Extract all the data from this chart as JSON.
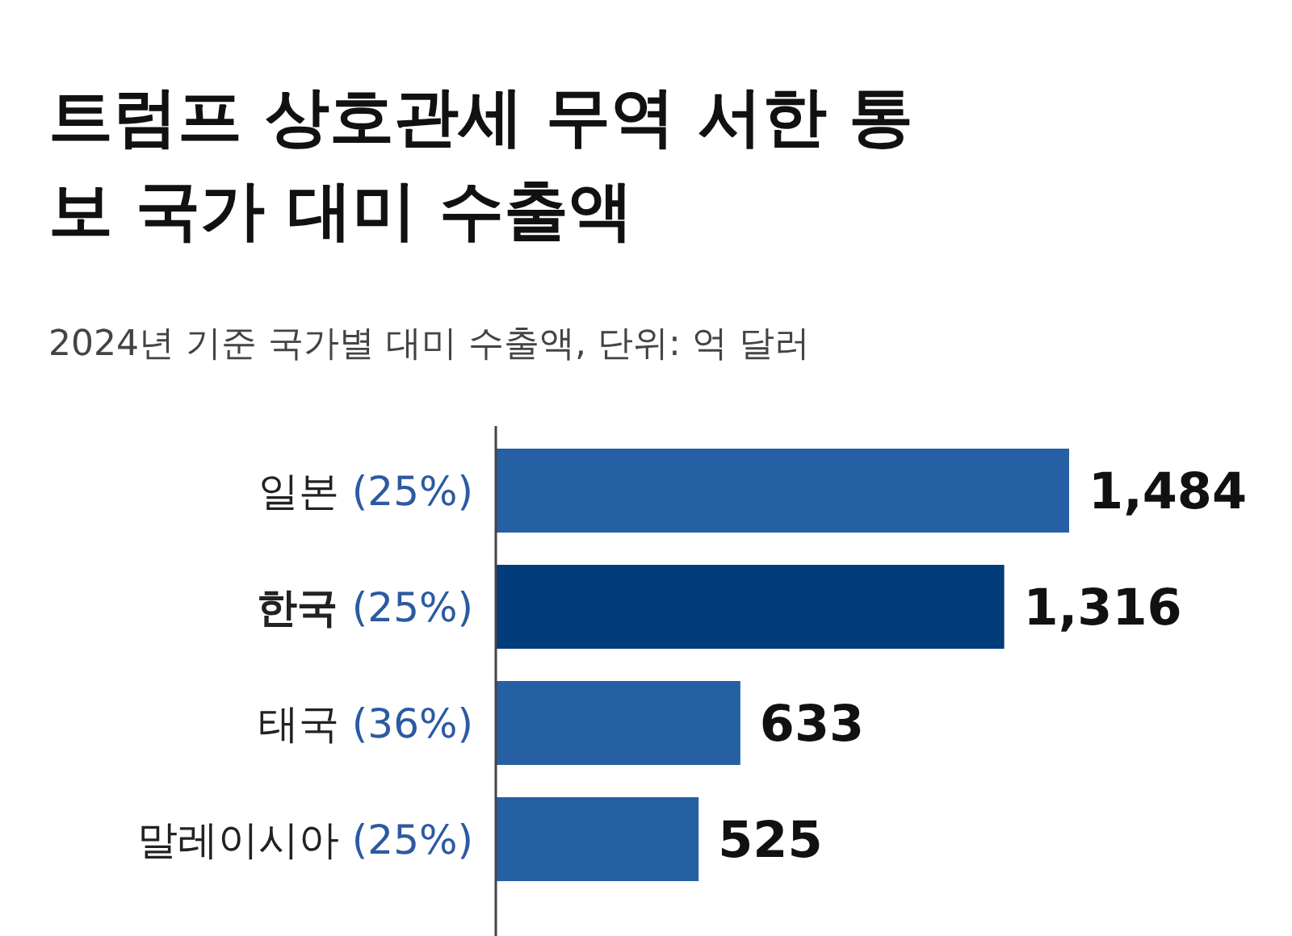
{
  "chart_data": {
    "type": "bar",
    "orientation": "horizontal",
    "title": "트럼프 상호관세 무역 서한 통보 국가 대미 수출액",
    "subtitle": "2024년 기준 국가별 대미 수출액, 단위: 억 달러",
    "categories": [
      "일본 (25%)",
      "한국 (25%)",
      "태국 (36%)",
      "말레이시아 (25%)"
    ],
    "values": [
      1484,
      1316,
      633,
      525
    ],
    "value_labels": [
      "1,484",
      "1,316",
      "633",
      "525"
    ],
    "colors": [
      "#2660a4",
      "#033c7a",
      "#2660a4",
      "#2660a4"
    ]
  }
}
